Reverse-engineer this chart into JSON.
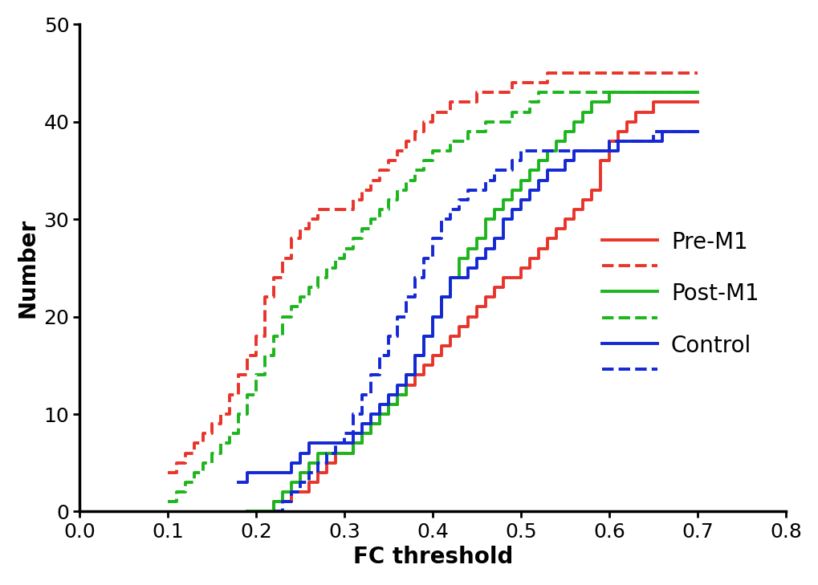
{
  "pre_m1_solid": {
    "x": [
      0.2,
      0.22,
      0.24,
      0.26,
      0.27,
      0.28,
      0.29,
      0.3,
      0.31,
      0.32,
      0.33,
      0.34,
      0.35,
      0.36,
      0.37,
      0.38,
      0.39,
      0.4,
      0.41,
      0.42,
      0.43,
      0.44,
      0.45,
      0.46,
      0.47,
      0.48,
      0.49,
      0.5,
      0.51,
      0.52,
      0.53,
      0.54,
      0.55,
      0.56,
      0.57,
      0.58,
      0.59,
      0.6,
      0.61,
      0.62,
      0.63,
      0.64,
      0.65,
      0.66,
      0.67,
      0.68,
      0.69,
      0.7
    ],
    "y": [
      0,
      1,
      2,
      3,
      4,
      5,
      6,
      6,
      7,
      8,
      9,
      10,
      11,
      12,
      13,
      14,
      15,
      16,
      17,
      18,
      19,
      20,
      21,
      22,
      23,
      24,
      24,
      25,
      26,
      27,
      28,
      29,
      30,
      31,
      32,
      33,
      36,
      38,
      39,
      40,
      41,
      41,
      42,
      42,
      42,
      42,
      42,
      42
    ]
  },
  "pre_m1_dashed": {
    "x": [
      0.1,
      0.11,
      0.12,
      0.13,
      0.14,
      0.15,
      0.16,
      0.17,
      0.18,
      0.19,
      0.2,
      0.21,
      0.22,
      0.23,
      0.24,
      0.25,
      0.26,
      0.27,
      0.28,
      0.29,
      0.3,
      0.31,
      0.32,
      0.33,
      0.34,
      0.35,
      0.36,
      0.37,
      0.38,
      0.39,
      0.4,
      0.41,
      0.42,
      0.43,
      0.44,
      0.45,
      0.46,
      0.47,
      0.48,
      0.49,
      0.5,
      0.51,
      0.52,
      0.53,
      0.54,
      0.55,
      0.6,
      0.65,
      0.7
    ],
    "y": [
      4,
      5,
      6,
      7,
      8,
      9,
      10,
      12,
      14,
      16,
      18,
      22,
      24,
      26,
      28,
      29,
      30,
      31,
      31,
      31,
      31,
      32,
      33,
      34,
      35,
      36,
      37,
      38,
      39,
      40,
      41,
      41,
      42,
      42,
      42,
      43,
      43,
      43,
      43,
      44,
      44,
      44,
      44,
      45,
      45,
      45,
      45,
      45,
      45
    ]
  },
  "post_m1_solid": {
    "x": [
      0.19,
      0.2,
      0.21,
      0.22,
      0.23,
      0.24,
      0.25,
      0.26,
      0.27,
      0.28,
      0.29,
      0.3,
      0.31,
      0.32,
      0.33,
      0.34,
      0.35,
      0.36,
      0.37,
      0.38,
      0.39,
      0.4,
      0.41,
      0.42,
      0.43,
      0.44,
      0.45,
      0.46,
      0.47,
      0.48,
      0.49,
      0.5,
      0.51,
      0.52,
      0.53,
      0.54,
      0.55,
      0.56,
      0.57,
      0.58,
      0.59,
      0.6,
      0.61,
      0.62,
      0.63,
      0.64,
      0.65,
      0.66,
      0.67,
      0.68,
      0.7
    ],
    "y": [
      0,
      0,
      0,
      1,
      2,
      3,
      4,
      5,
      6,
      6,
      6,
      6,
      7,
      8,
      9,
      10,
      11,
      12,
      14,
      16,
      18,
      20,
      22,
      24,
      26,
      27,
      28,
      30,
      31,
      32,
      33,
      34,
      35,
      36,
      37,
      38,
      39,
      40,
      41,
      42,
      42,
      43,
      43,
      43,
      43,
      43,
      43,
      43,
      43,
      43,
      43
    ]
  },
  "post_m1_dashed": {
    "x": [
      0.1,
      0.11,
      0.12,
      0.13,
      0.14,
      0.15,
      0.16,
      0.17,
      0.18,
      0.19,
      0.2,
      0.21,
      0.22,
      0.23,
      0.24,
      0.25,
      0.26,
      0.27,
      0.28,
      0.29,
      0.3,
      0.31,
      0.32,
      0.33,
      0.34,
      0.35,
      0.36,
      0.37,
      0.38,
      0.39,
      0.4,
      0.41,
      0.42,
      0.43,
      0.44,
      0.45,
      0.46,
      0.47,
      0.48,
      0.49,
      0.5,
      0.51,
      0.52,
      0.53,
      0.54,
      0.55,
      0.6,
      0.65,
      0.7
    ],
    "y": [
      1,
      2,
      3,
      4,
      5,
      6,
      7,
      8,
      10,
      12,
      14,
      16,
      18,
      20,
      21,
      22,
      23,
      24,
      25,
      26,
      27,
      28,
      29,
      30,
      31,
      32,
      33,
      34,
      35,
      36,
      37,
      37,
      38,
      38,
      39,
      39,
      40,
      40,
      40,
      41,
      41,
      42,
      43,
      43,
      43,
      43,
      43,
      43,
      43
    ]
  },
  "control_solid": {
    "x": [
      0.18,
      0.19,
      0.2,
      0.21,
      0.22,
      0.23,
      0.24,
      0.25,
      0.26,
      0.27,
      0.28,
      0.29,
      0.3,
      0.31,
      0.32,
      0.33,
      0.34,
      0.35,
      0.36,
      0.37,
      0.38,
      0.39,
      0.4,
      0.41,
      0.42,
      0.43,
      0.44,
      0.45,
      0.46,
      0.47,
      0.48,
      0.49,
      0.5,
      0.51,
      0.52,
      0.53,
      0.54,
      0.55,
      0.56,
      0.57,
      0.58,
      0.59,
      0.6,
      0.61,
      0.62,
      0.63,
      0.64,
      0.65,
      0.66,
      0.67,
      0.68,
      0.7
    ],
    "y": [
      3,
      4,
      4,
      4,
      4,
      4,
      5,
      6,
      7,
      7,
      7,
      7,
      7,
      8,
      9,
      10,
      11,
      12,
      13,
      14,
      16,
      18,
      20,
      22,
      24,
      24,
      25,
      26,
      27,
      28,
      30,
      31,
      32,
      33,
      34,
      35,
      35,
      36,
      37,
      37,
      37,
      37,
      37,
      38,
      38,
      38,
      38,
      38,
      39,
      39,
      39,
      39
    ]
  },
  "control_dashed": {
    "x": [
      0.22,
      0.23,
      0.24,
      0.25,
      0.26,
      0.27,
      0.28,
      0.29,
      0.3,
      0.31,
      0.32,
      0.33,
      0.34,
      0.35,
      0.36,
      0.37,
      0.38,
      0.39,
      0.4,
      0.41,
      0.42,
      0.43,
      0.44,
      0.45,
      0.46,
      0.47,
      0.48,
      0.49,
      0.5,
      0.51,
      0.52,
      0.53,
      0.54,
      0.55,
      0.6,
      0.65,
      0.7
    ],
    "y": [
      0,
      1,
      2,
      3,
      4,
      5,
      6,
      7,
      8,
      10,
      12,
      14,
      16,
      18,
      20,
      22,
      24,
      26,
      28,
      30,
      31,
      32,
      33,
      33,
      34,
      35,
      35,
      36,
      37,
      37,
      37,
      37,
      37,
      37,
      38,
      39,
      39
    ]
  },
  "colors": {
    "pre_m1": "#E8342A",
    "post_m1": "#1DB51D",
    "control": "#1428D4"
  },
  "line_width": 2.8,
  "xlim": [
    0.0,
    0.8
  ],
  "ylim": [
    0,
    50
  ],
  "xticks": [
    0.0,
    0.1,
    0.2,
    0.3,
    0.4,
    0.5,
    0.6,
    0.7,
    0.8
  ],
  "yticks": [
    0,
    10,
    20,
    30,
    40,
    50
  ],
  "xlabel": "FC threshold",
  "ylabel": "Number",
  "axis_fontsize": 20,
  "tick_fontsize": 18,
  "legend_fontsize": 20,
  "legend_entries": [
    {
      "label": "Pre-M1",
      "color": "#E8342A",
      "style": "-"
    },
    {
      "label": "",
      "color": "#E8342A",
      "style": "--"
    },
    {
      "label": "Post-M1",
      "color": "#1DB51D",
      "style": "-"
    },
    {
      "label": "",
      "color": "#1DB51D",
      "style": "--"
    },
    {
      "label": "Control",
      "color": "#1428D4",
      "style": "-"
    },
    {
      "label": "",
      "color": "#1428D4",
      "style": "--"
    }
  ]
}
